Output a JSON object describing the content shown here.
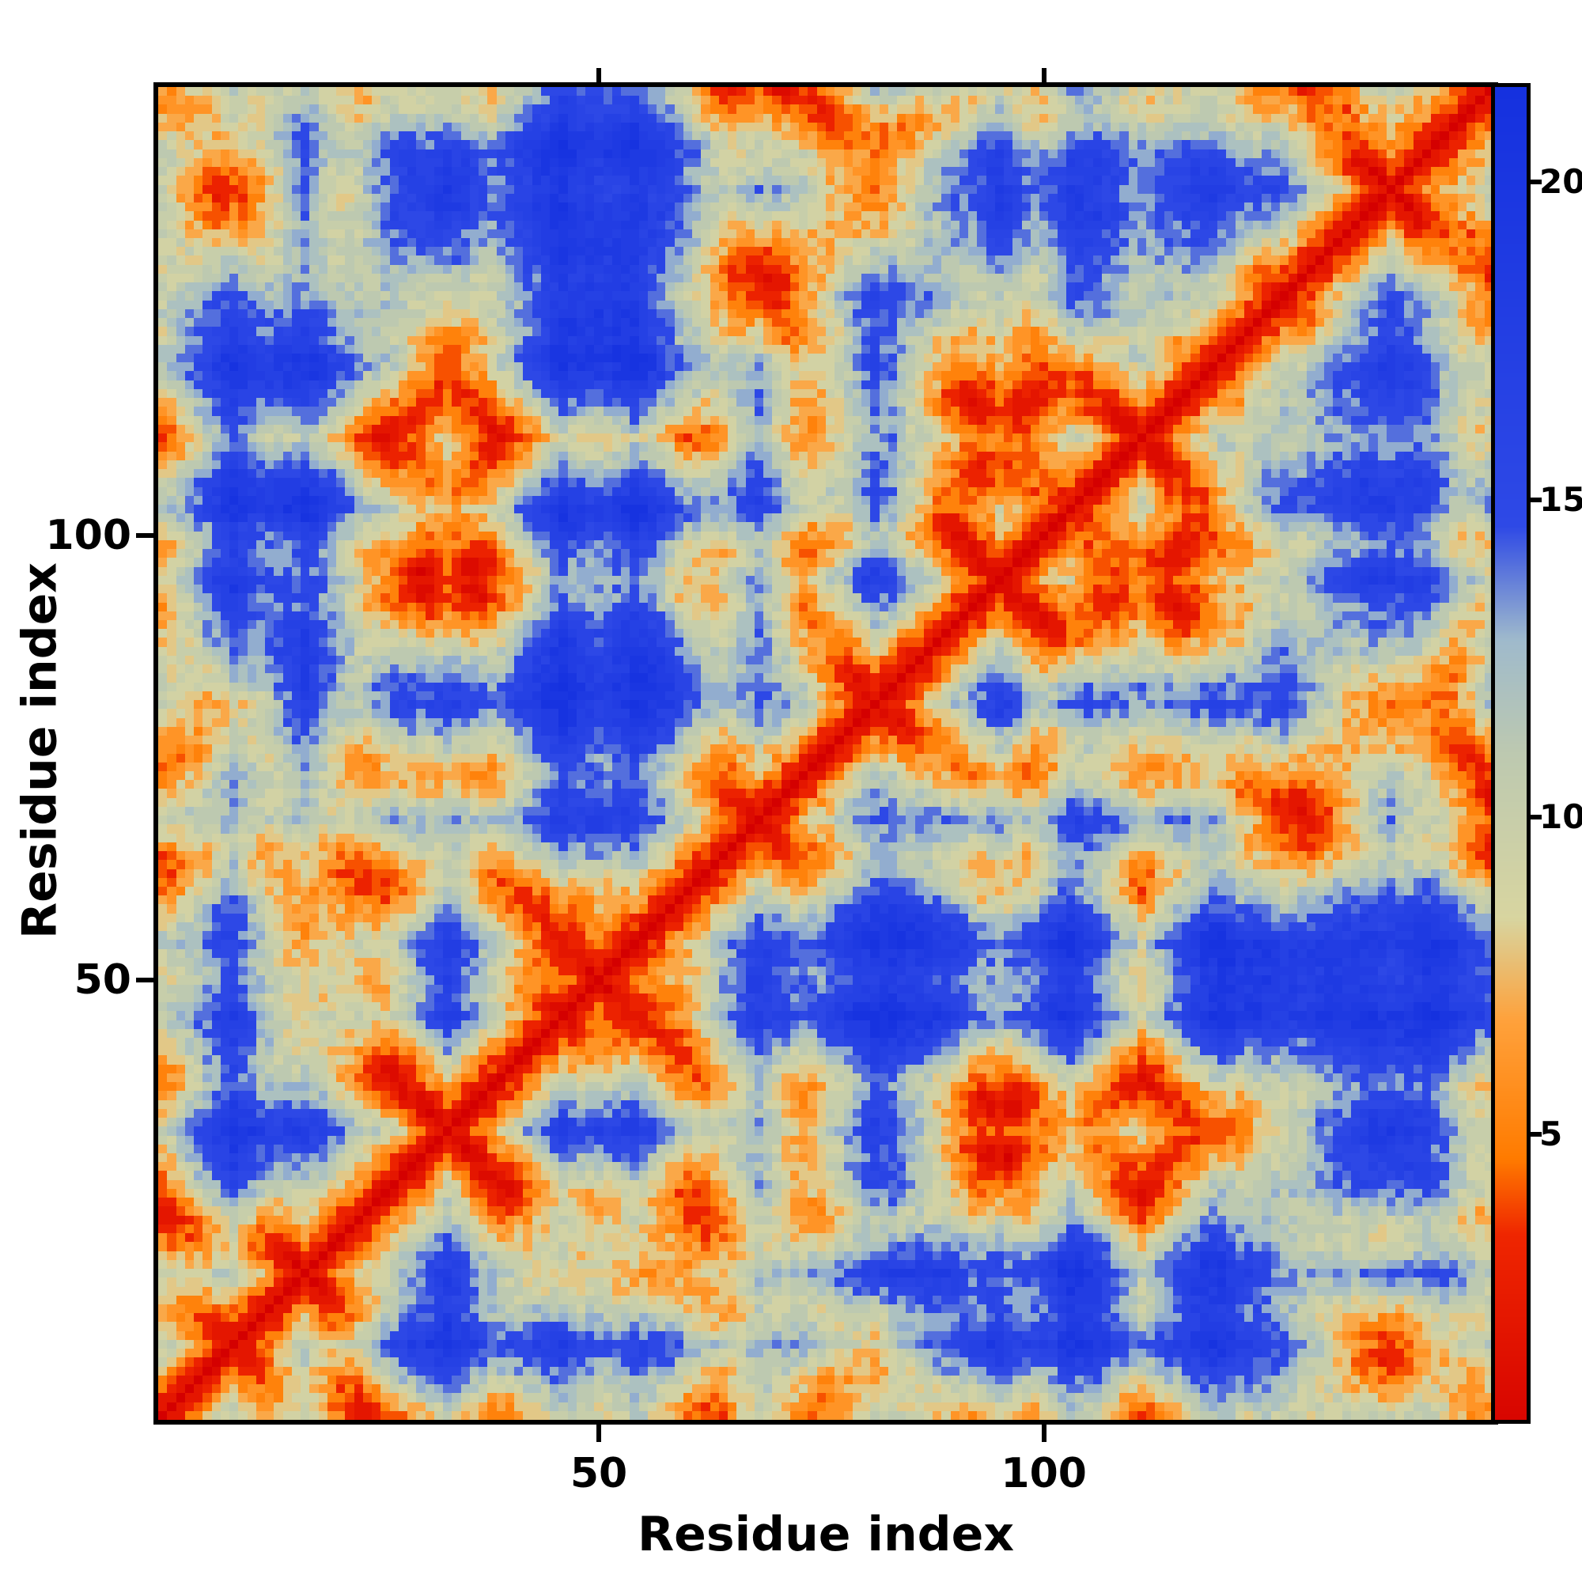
{
  "figure": {
    "background": "#ffffff",
    "frame_color": "#000000"
  },
  "chart_data": {
    "type": "heatmap",
    "title": "",
    "xlabel": "Residue index",
    "ylabel": "Residue index",
    "x_ticks": [
      50,
      100
    ],
    "y_ticks": [
      50,
      100
    ],
    "n_residues": 150,
    "axis_range": [
      1,
      150
    ],
    "grid": false,
    "legend": false,
    "colorbar": {
      "ticks": [
        5,
        10,
        15,
        20
      ],
      "vmin": 0.5,
      "vmax": 21.5,
      "orientation": "vertical",
      "position": "right"
    },
    "colormap_stops": [
      [
        0.0,
        "#d40000"
      ],
      [
        3.4,
        "#ef2600"
      ],
      [
        4.6,
        "#ff7b00"
      ],
      [
        6.8,
        "#ffa23c"
      ],
      [
        8.4,
        "#d8d5a0"
      ],
      [
        11.0,
        "#bdc9b0"
      ],
      [
        12.8,
        "#9fbacc"
      ],
      [
        14.6,
        "#2e49e6"
      ],
      [
        21.5,
        "#1531df"
      ]
    ],
    "matrix_generator": {
      "description": "Symmetric pairwise residue-residue distance matrix (values in colorbar units) for a 150-residue chain; reconstructed procedurally: compact self-confined backbone walk with hairpin turns producing the red self-diagonal, orange near-contact streaks, pale mid-range clusters and deep-blue long-range background seen in the screenshot",
      "seed": 1337,
      "step": 1.5,
      "wobble": 0.55,
      "confine_radius": 10.2,
      "pull": 1.1,
      "turn_points": [
        17,
        33,
        50,
        68,
        81,
        95,
        111,
        127,
        139
      ],
      "speckle": 1.4
    }
  }
}
